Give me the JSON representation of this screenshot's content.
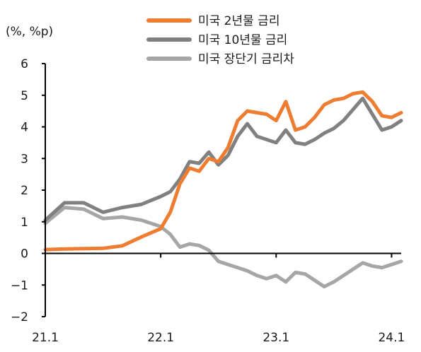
{
  "chart_data": {
    "type": "line",
    "unit_label": "(%, %p)",
    "ylim": [
      -2,
      6
    ],
    "y_ticks": [
      "6",
      "5",
      "4",
      "3",
      "2",
      "1",
      "0",
      "−1",
      "−2"
    ],
    "y_tick_values": [
      6,
      5,
      4,
      3,
      2,
      1,
      0,
      -1,
      -2
    ],
    "x_ticks": [
      "21.1",
      "22.1",
      "23.1",
      "24.1"
    ],
    "x_tick_values": [
      "2021-01",
      "2022-01",
      "2023-01",
      "2024-01"
    ],
    "xlim": [
      "2021-01",
      "2024-02"
    ],
    "grid": false,
    "legend_position": "top-right",
    "series": [
      {
        "name": "미국 2년물 금리",
        "color": "#ee7d31",
        "x": [
          "2021-01",
          "2021-03",
          "2021-05",
          "2021-07",
          "2021-09",
          "2021-11",
          "2022-01",
          "2022-02",
          "2022-03",
          "2022-04",
          "2022-05",
          "2022-06",
          "2022-07",
          "2022-08",
          "2022-09",
          "2022-10",
          "2022-11",
          "2022-12",
          "2023-01",
          "2023-02",
          "2023-03",
          "2023-04",
          "2023-05",
          "2023-06",
          "2023-07",
          "2023-08",
          "2023-09",
          "2023-10",
          "2023-11",
          "2023-12",
          "2024-01",
          "2024-02"
        ],
        "values": [
          0.12,
          0.14,
          0.15,
          0.16,
          0.24,
          0.52,
          0.78,
          1.3,
          2.2,
          2.7,
          2.6,
          3.0,
          2.9,
          3.35,
          4.2,
          4.5,
          4.45,
          4.4,
          4.2,
          4.8,
          3.9,
          4.0,
          4.3,
          4.7,
          4.85,
          4.9,
          5.05,
          5.1,
          4.8,
          4.35,
          4.3,
          4.45
        ]
      },
      {
        "name": "미국 10년물 금리",
        "color": "#808080",
        "x": [
          "2021-01",
          "2021-03",
          "2021-05",
          "2021-07",
          "2021-09",
          "2021-11",
          "2022-01",
          "2022-02",
          "2022-03",
          "2022-04",
          "2022-05",
          "2022-06",
          "2022-07",
          "2022-08",
          "2022-09",
          "2022-10",
          "2022-11",
          "2022-12",
          "2023-01",
          "2023-02",
          "2023-03",
          "2023-04",
          "2023-05",
          "2023-06",
          "2023-07",
          "2023-08",
          "2023-09",
          "2023-10",
          "2023-11",
          "2023-12",
          "2024-01",
          "2024-02"
        ],
        "values": [
          1.05,
          1.6,
          1.6,
          1.3,
          1.45,
          1.55,
          1.8,
          1.95,
          2.35,
          2.9,
          2.85,
          3.2,
          2.8,
          3.1,
          3.7,
          4.1,
          3.7,
          3.6,
          3.5,
          3.9,
          3.5,
          3.45,
          3.6,
          3.8,
          3.95,
          4.2,
          4.55,
          4.9,
          4.4,
          3.9,
          4.0,
          4.2
        ]
      },
      {
        "name": "미국 장단기 금리차",
        "color": "#a6a6a6",
        "x": [
          "2021-01",
          "2021-03",
          "2021-05",
          "2021-07",
          "2021-09",
          "2021-11",
          "2022-01",
          "2022-02",
          "2022-03",
          "2022-04",
          "2022-05",
          "2022-06",
          "2022-07",
          "2022-08",
          "2022-09",
          "2022-10",
          "2022-11",
          "2022-12",
          "2023-01",
          "2023-02",
          "2023-03",
          "2023-04",
          "2023-05",
          "2023-06",
          "2023-07",
          "2023-08",
          "2023-09",
          "2023-10",
          "2023-11",
          "2023-12",
          "2024-01",
          "2024-02"
        ],
        "values": [
          0.95,
          1.45,
          1.4,
          1.1,
          1.15,
          1.05,
          0.85,
          0.6,
          0.2,
          0.3,
          0.25,
          0.1,
          -0.25,
          -0.35,
          -0.45,
          -0.55,
          -0.7,
          -0.8,
          -0.7,
          -0.9,
          -0.6,
          -0.65,
          -0.85,
          -1.05,
          -0.9,
          -0.7,
          -0.5,
          -0.3,
          -0.4,
          -0.45,
          -0.35,
          -0.25
        ]
      }
    ]
  }
}
